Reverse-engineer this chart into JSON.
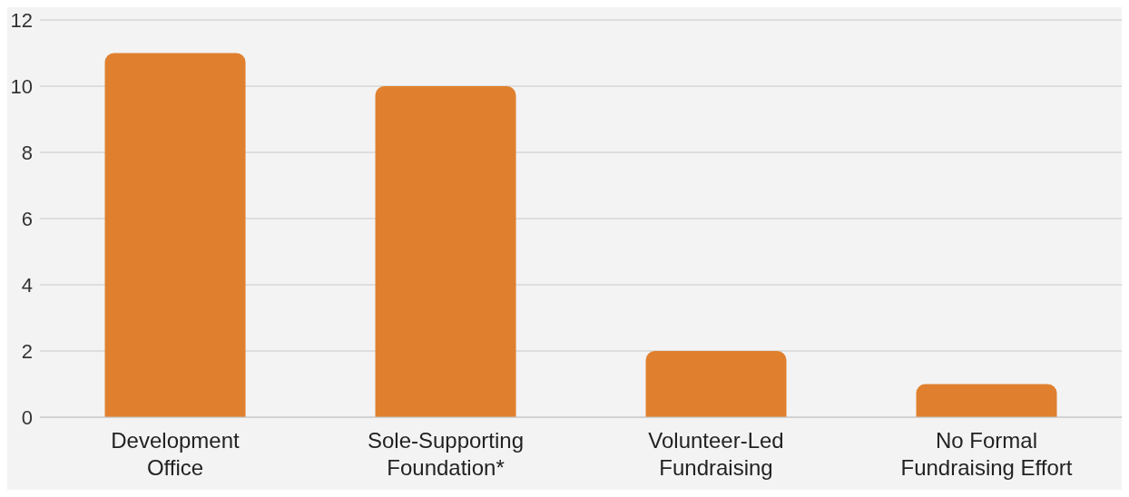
{
  "chart_data": {
    "type": "bar",
    "categories": [
      "Development Office",
      "Sole-Supporting Foundation*",
      "Volunteer-Led Fundraising",
      "No Formal Fundraising Effort"
    ],
    "values": [
      11,
      10,
      2,
      1
    ],
    "color": "#e0802f",
    "ylim": [
      0,
      12
    ],
    "yticks": [
      0,
      2,
      4,
      6,
      8,
      10,
      12
    ],
    "grid": "y"
  }
}
